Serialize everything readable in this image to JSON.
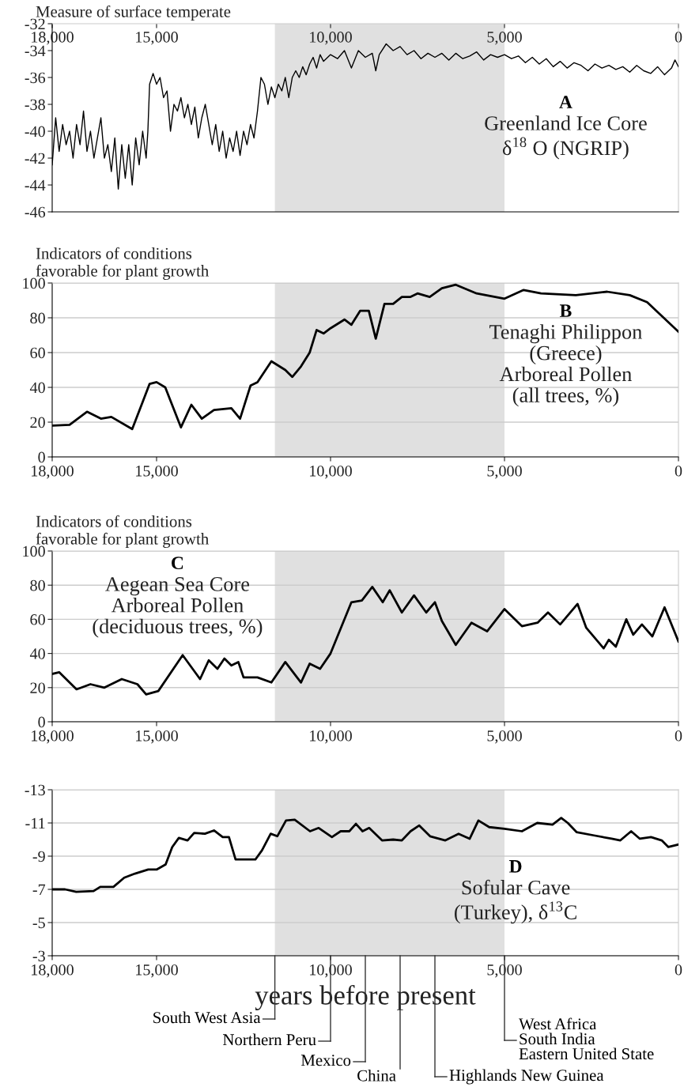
{
  "chart_data": [
    {
      "type": "line",
      "ylabel": "Measure of surface temperate",
      "annotations": [
        "A",
        "Greenland Ice Core\nδ$^{18}$ O (NGRIP)"
      ],
      "series": [
        {
          "color": "#000000",
          "x": [
            18000,
            17900,
            17800,
            17700,
            17600,
            17500,
            17400,
            17300,
            17200,
            17100,
            17000,
            16900,
            16800,
            16700,
            16600,
            16500,
            16400,
            16300,
            16200,
            16100,
            16000,
            15900,
            15800,
            15700,
            15600,
            15500,
            15400,
            15300,
            15250,
            15200,
            15100,
            15000,
            14900,
            14800,
            14700,
            14600,
            14500,
            14400,
            14300,
            14200,
            14100,
            14000,
            13900,
            13800,
            13700,
            13600,
            13500,
            13400,
            13300,
            13200,
            13100,
            13000,
            12900,
            12800,
            12700,
            12600,
            12500,
            12400,
            12300,
            12200,
            12100,
            12000,
            11900,
            11800,
            11700,
            11600,
            11500,
            11400,
            11300,
            11200,
            11100,
            11000,
            10900,
            10800,
            10700,
            10600,
            10500,
            10400,
            10300,
            10200,
            10000,
            9800,
            9600,
            9400,
            9200,
            9000,
            8800,
            8700,
            8600,
            8400,
            8200,
            8000,
            7800,
            7600,
            7400,
            7200,
            7000,
            6800,
            6600,
            6400,
            6200,
            6000,
            5800,
            5600,
            5400,
            5200,
            5000,
            4800,
            4600,
            4400,
            4200,
            4000,
            3800,
            3600,
            3400,
            3200,
            3000,
            2800,
            2600,
            2400,
            2200,
            2000,
            1800,
            1600,
            1400,
            1200,
            1000,
            800,
            600,
            400,
            200,
            100,
            0
          ],
          "values": [
            -42.5,
            -39,
            -41.5,
            -39.5,
            -41,
            -40,
            -42,
            -39.5,
            -41,
            -38.5,
            -41.5,
            -40,
            -42,
            -40.5,
            -39,
            -42,
            -41,
            -43,
            -40.5,
            -44.3,
            -41,
            -43.5,
            -41,
            -44,
            -40.5,
            -42.5,
            -40,
            -42,
            -40,
            -36.5,
            -35.7,
            -36.5,
            -36,
            -37.5,
            -37,
            -40,
            -38,
            -38.5,
            -37.5,
            -39,
            -38,
            -39.5,
            -38.2,
            -40.5,
            -39,
            -38,
            -39.5,
            -41,
            -39.5,
            -41.5,
            -40,
            -42,
            -40.5,
            -41.5,
            -40,
            -41.8,
            -40,
            -41,
            -39.5,
            -40.5,
            -38.5,
            -36,
            -36.5,
            -38,
            -36.7,
            -37.5,
            -36.5,
            -37,
            -36,
            -37.5,
            -36,
            -35.5,
            -36,
            -35.2,
            -35.8,
            -35,
            -34.5,
            -35.3,
            -34.3,
            -34.8,
            -34.3,
            -34.6,
            -34,
            -35.3,
            -34,
            -34.5,
            -34.2,
            -35.5,
            -34.3,
            -33.5,
            -34,
            -33.7,
            -34.3,
            -34,
            -34.6,
            -34.2,
            -34.5,
            -34.2,
            -34.7,
            -34.2,
            -34.6,
            -34.4,
            -34.1,
            -34.7,
            -34.3,
            -34.5,
            -34.3,
            -34.6,
            -34.4,
            -34.9,
            -34.5,
            -35,
            -34.6,
            -35.2,
            -34.8,
            -35.3,
            -34.9,
            -35.1,
            -35.5,
            -35,
            -35.3,
            -35.1,
            -35.4,
            -35.2,
            -35.6,
            -35.1,
            -35.5,
            -35.7,
            -35.2,
            -35.8,
            -35.3,
            -34.7,
            -35.2
          ]
        }
      ],
      "xlim": [
        18000,
        0
      ],
      "xticks": [
        {
          "value": 18000,
          "label": "18,000"
        },
        {
          "value": 15000,
          "label": "15,000"
        },
        {
          "value": 10000,
          "label": "10,000"
        },
        {
          "value": 5000,
          "label": "5,000"
        },
        0
      ],
      "ylim": [
        -46,
        -32
      ],
      "yticks": [
        -46,
        -44,
        -42,
        -40,
        -38,
        -36,
        -34,
        -32
      ],
      "tick_labels": "xy",
      "grid": false,
      "bands": [
        {
          "axis": "x",
          "from": 11600,
          "to": 5000,
          "color": "#e0e0e0"
        }
      ]
    },
    {
      "type": "line",
      "ylabel": "Indicators of conditions\nfavorable for plant growth",
      "annotations": [
        "B",
        "Tenaghi Philippon\n(Greece)\nArboreal Pollen\n(all trees, %)"
      ],
      "series": [
        {
          "color": "#000000",
          "x": [
            18000,
            17500,
            17000,
            16600,
            16300,
            15700,
            15200,
            15000,
            14750,
            14300,
            14000,
            13700,
            13350,
            12850,
            12600,
            12300,
            12100,
            11700,
            11300,
            11100,
            10850,
            10600,
            10400,
            10200,
            10000,
            9600,
            9400,
            9150,
            8900,
            8700,
            8450,
            8200,
            7950,
            7700,
            7500,
            7150,
            6800,
            6400,
            5800,
            5000,
            4450,
            3950,
            2950,
            2050,
            1400,
            900,
            0
          ],
          "values": [
            18,
            18.5,
            26,
            22,
            23,
            16,
            42,
            43,
            40,
            17,
            30,
            22,
            27,
            28,
            22,
            41,
            43,
            55,
            50,
            46,
            52,
            60,
            73,
            71,
            74,
            79,
            76,
            84,
            84,
            68,
            88,
            88,
            92,
            92,
            94,
            92,
            97,
            99,
            94,
            91,
            96,
            94,
            93,
            95,
            93,
            89,
            72
          ]
        }
      ],
      "xlim": [
        18000,
        0
      ],
      "xticks": [
        {
          "value": 18000,
          "label": "18,000"
        },
        {
          "value": 15000,
          "label": "15,000"
        },
        {
          "value": 10000,
          "label": "10,000"
        },
        {
          "value": 5000,
          "label": "5,000"
        },
        0
      ],
      "ylim": [
        0,
        100
      ],
      "yticks": [
        0,
        20,
        40,
        60,
        80,
        100
      ],
      "grid": "y",
      "bands": [
        {
          "axis": "x",
          "from": 11600,
          "to": 5000,
          "color": "#e0e0e0"
        }
      ]
    },
    {
      "type": "line",
      "ylabel": "Indicators of conditions\nfavorable for plant growth",
      "annotations": [
        "C",
        "Aegean Sea Core\nArboreal Pollen\n(deciduous trees, %)"
      ],
      "series": [
        {
          "color": "#000000",
          "x": [
            18000,
            17800,
            17300,
            16900,
            16500,
            16000,
            15550,
            15300,
            14950,
            14250,
            13750,
            13500,
            13250,
            13050,
            12850,
            12650,
            12500,
            12100,
            11700,
            11300,
            10850,
            10600,
            10300,
            10000,
            9400,
            9100,
            8800,
            8500,
            8300,
            7950,
            7600,
            7250,
            7000,
            6800,
            6400,
            5950,
            5500,
            5000,
            4500,
            4050,
            3750,
            3400,
            2900,
            2650,
            2150,
            2000,
            1800,
            1500,
            1300,
            1050,
            750,
            400,
            0
          ],
          "values": [
            28,
            29,
            19,
            22,
            20,
            25,
            22,
            16,
            18,
            39,
            25,
            36,
            31,
            37,
            33,
            35,
            26,
            26,
            23,
            35,
            23,
            34,
            31,
            40,
            70,
            71,
            79,
            70,
            77,
            64,
            74,
            64,
            70,
            59,
            45,
            58,
            53,
            66,
            56,
            58,
            64,
            57,
            69,
            55,
            43,
            48,
            44,
            60,
            51,
            57,
            50,
            67,
            47
          ]
        }
      ],
      "xlim": [
        18000,
        0
      ],
      "xticks": [
        {
          "value": 18000,
          "label": "18,000"
        },
        {
          "value": 15000,
          "label": "15,000"
        },
        {
          "value": 10000,
          "label": "10,000"
        },
        {
          "value": 5000,
          "label": "5,000"
        },
        0
      ],
      "ylim": [
        0,
        100
      ],
      "yticks": [
        0,
        20,
        40,
        60,
        80,
        100
      ],
      "grid": "y",
      "bands": [
        {
          "axis": "x",
          "from": 11600,
          "to": 5000,
          "color": "#e0e0e0"
        }
      ]
    },
    {
      "type": "line",
      "xlabel": "years before present",
      "annotations": [
        "D",
        "Sofular Cave\n(Turkey), δ$^{13}$C"
      ],
      "ref_lines": [
        {
          "axis": "x",
          "value": 11600,
          "label": "South West Asia"
        },
        {
          "axis": "x",
          "value": 10000,
          "label": "Northern Peru"
        },
        {
          "axis": "x",
          "value": 9000,
          "label": "Mexico"
        },
        {
          "axis": "x",
          "value": 8000,
          "label": "China"
        },
        {
          "axis": "x",
          "value": 7000,
          "label": "Highlands New Guinea"
        },
        {
          "axis": "x",
          "value": 5000,
          "label": "West Africa\nSouth India\nEastern United State"
        }
      ],
      "series": [
        {
          "color": "#000000",
          "x": [
            18000,
            17630,
            17310,
            16810,
            16620,
            16240,
            15930,
            15620,
            15240,
            14990,
            14740,
            14550,
            14360,
            14110,
            13920,
            13610,
            13350,
            13100,
            12920,
            12730,
            12480,
            12160,
            11970,
            11720,
            11530,
            11280,
            11030,
            10590,
            10340,
            9960,
            9710,
            9460,
            9270,
            9080,
            8890,
            8520,
            8200,
            7950,
            7700,
            7450,
            7140,
            6700,
            6320,
            6000,
            5750,
            5440,
            5000,
            4500,
            4060,
            3620,
            3370,
            3180,
            2930,
            2430,
            1920,
            1670,
            1360,
            1110,
            790,
            480,
            290,
            0
          ],
          "values": [
            -7.0,
            -7.0,
            -6.85,
            -6.9,
            -7.15,
            -7.15,
            -7.7,
            -7.95,
            -8.2,
            -8.2,
            -8.5,
            -9.55,
            -10.1,
            -9.95,
            -10.4,
            -10.35,
            -10.55,
            -10.15,
            -10.15,
            -8.8,
            -8.8,
            -8.8,
            -9.35,
            -10.35,
            -10.2,
            -11.15,
            -11.2,
            -10.5,
            -10.7,
            -10.15,
            -10.5,
            -10.5,
            -10.95,
            -10.5,
            -10.7,
            -9.95,
            -10.0,
            -9.95,
            -10.5,
            -10.85,
            -10.2,
            -9.95,
            -10.35,
            -10.05,
            -11.15,
            -10.75,
            -10.65,
            -10.5,
            -11.0,
            -10.9,
            -11.3,
            -11.0,
            -10.45,
            -10.25,
            -10.05,
            -9.95,
            -10.5,
            -10.05,
            -10.15,
            -9.95,
            -9.55,
            -9.7
          ]
        }
      ],
      "xlim": [
        18000,
        0
      ],
      "xticks": [
        {
          "value": 18000,
          "label": "18,000"
        },
        {
          "value": 15000,
          "label": "15,000"
        },
        {
          "value": 10000,
          "label": "10,000"
        },
        {
          "value": 5000,
          "label": "5,000"
        },
        0
      ],
      "ylim": [
        -3,
        -13
      ],
      "yticks": [
        -13,
        -11,
        -9,
        -7,
        -5,
        -3
      ],
      "grid": "y",
      "bands": [
        {
          "axis": "x",
          "from": 11600,
          "to": 5000,
          "color": "#e0e0e0"
        }
      ]
    }
  ]
}
